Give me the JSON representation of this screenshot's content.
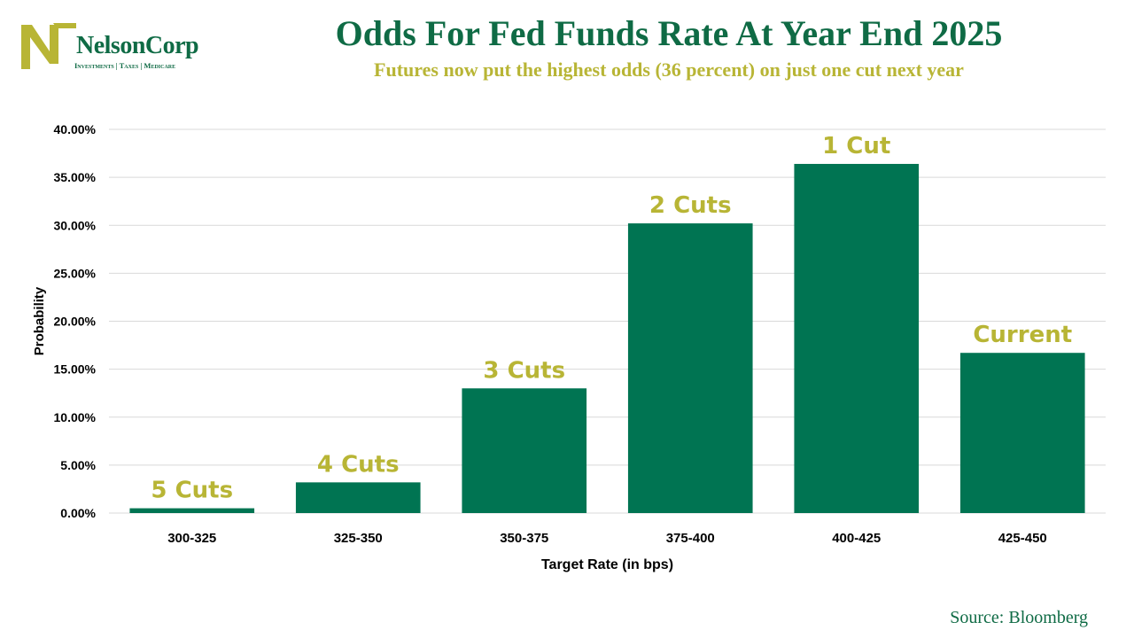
{
  "header": {
    "logo_name": "NelsonCorp",
    "logo_tagline": "Investments | Taxes | Medicare",
    "title": "Odds For Fed Funds Rate At Year End 2025",
    "subtitle": "Futures now put the highest odds (36 percent) on just one cut next year"
  },
  "footer": {
    "source": "Source: Bloomberg"
  },
  "colors": {
    "bar": "#007452",
    "label": "#b8b535",
    "brand": "#0f6b45",
    "grid": "#d9d9d9"
  },
  "chart_data": {
    "type": "bar",
    "categories": [
      "300-325",
      "325-350",
      "350-375",
      "375-400",
      "400-425",
      "425-450"
    ],
    "values": [
      0.5,
      3.2,
      13.0,
      30.2,
      36.4,
      16.7
    ],
    "annotations": [
      "5 Cuts",
      "4 Cuts",
      "3 Cuts",
      "2 Cuts",
      "1 Cut",
      "Current"
    ],
    "xlabel": "Target Rate (in bps)",
    "ylabel": "Probability",
    "ylim": [
      0,
      40
    ],
    "yticks": [
      "0.00%",
      "5.00%",
      "10.00%",
      "15.00%",
      "20.00%",
      "25.00%",
      "30.00%",
      "35.00%",
      "40.00%"
    ],
    "grid": true,
    "legend": "none"
  }
}
